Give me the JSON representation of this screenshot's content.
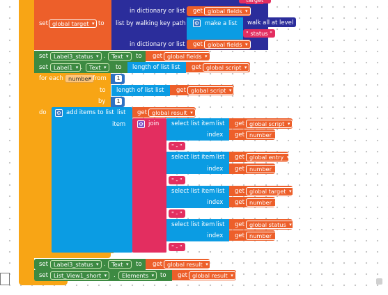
{
  "blocks": {
    "b_target": "target",
    "b_in_dict1": "in dictionary or list",
    "b_get": "get",
    "b_global_fields": "global fields",
    "b_set": "set",
    "b_global_target": "global target",
    "b_to": "to",
    "b_list_walk": "list by walking key path",
    "b_make_list": "make a list",
    "b_walk_all": "walk all at level",
    "b_status": "status",
    "b_label3_status": "Label3_status",
    "b_text": "Text",
    "b_label1": "Label1",
    "b_length_of_list": "length of list",
    "b_list": "list",
    "b_global_script": "global script",
    "b_for_each": "for each",
    "b_number": "number",
    "b_from": "from",
    "b_one": "1",
    "b_by": "by",
    "b_do": "do",
    "b_add_items": "add items to list",
    "b_global_result": "global result",
    "b_item": "item",
    "b_join": "join",
    "b_select_list_item": "select list item",
    "b_index": "index",
    "b_dash": "-",
    "b_global_entry": "global entry",
    "b_global_status": "global status",
    "b_listview": "List_View1_short",
    "b_elements": "Elements",
    "b_dot": "."
  },
  "colors": {
    "control": "#f8a515",
    "variable": "#ed5f2a",
    "component": "#3d8a42",
    "list": "#0b9ce3",
    "dictionary": "#2b2d9b",
    "text": "#e32e60",
    "procedure": "#f5573d"
  }
}
